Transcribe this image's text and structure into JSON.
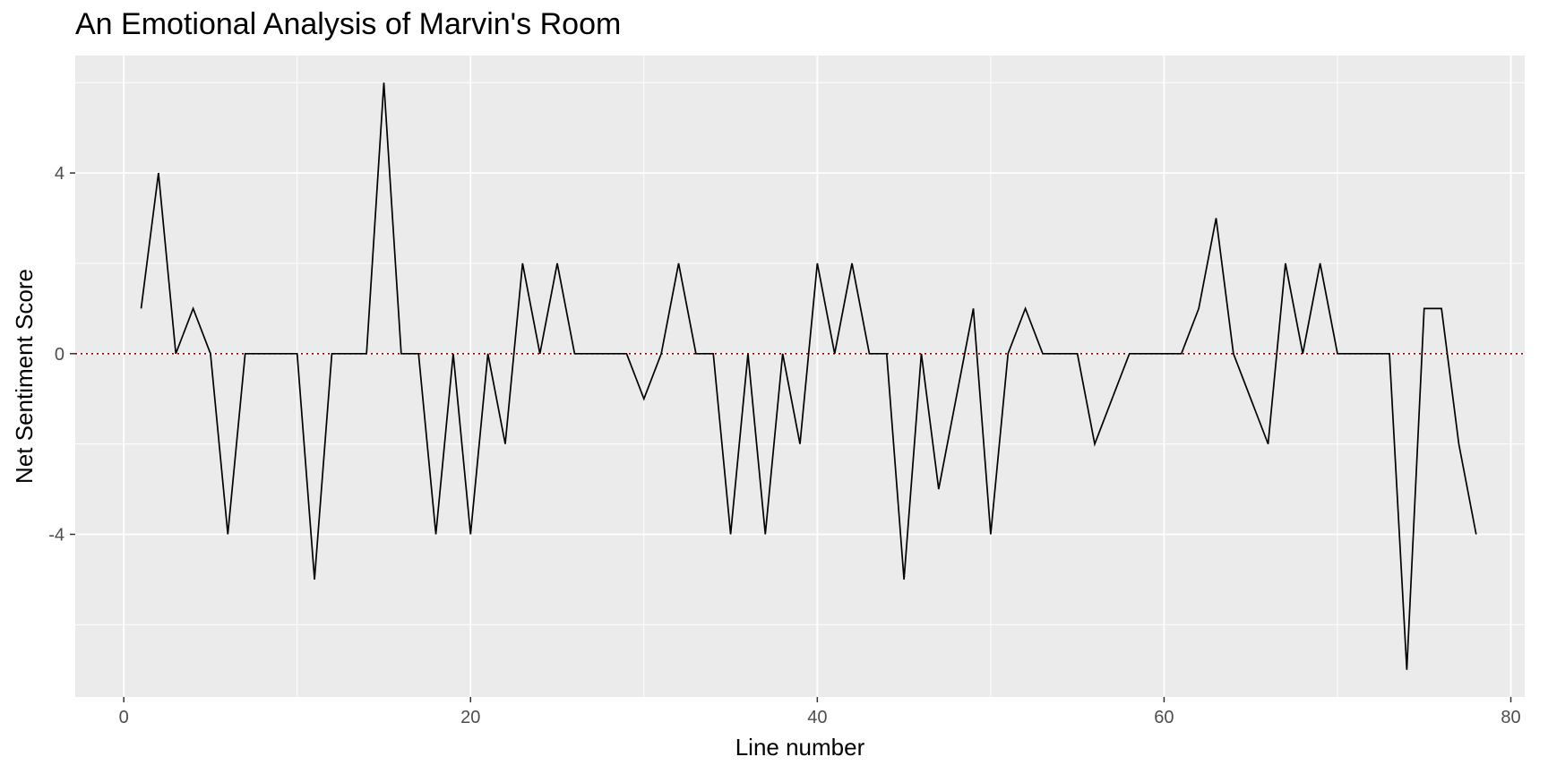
{
  "chart_data": {
    "type": "line",
    "title": "An Emotional Analysis of Marvin's Room",
    "xlabel": "Line number",
    "ylabel": "Net Sentiment Score",
    "xlim": [
      -2.8,
      80.8
    ],
    "ylim": [
      -7.6,
      6.6
    ],
    "x_ticks": [
      0,
      20,
      40,
      60,
      80
    ],
    "y_ticks": [
      -4,
      0,
      4
    ],
    "y_tick_labels": [
      "-4",
      "0",
      "4"
    ],
    "x_minor_ticks": [
      10,
      30,
      50,
      70
    ],
    "y_minor_ticks": [
      -6,
      -2,
      2,
      6
    ],
    "grid": true,
    "background": "#ebebeb",
    "gridline_color": "#ffffff",
    "line_color": "#000000",
    "reference_line": {
      "y": 0,
      "style": "dotted",
      "color": "#8b0000"
    },
    "x": [
      1,
      2,
      3,
      4,
      5,
      6,
      7,
      8,
      9,
      10,
      11,
      12,
      13,
      14,
      15,
      16,
      17,
      18,
      19,
      20,
      21,
      22,
      23,
      24,
      25,
      26,
      27,
      28,
      29,
      30,
      31,
      32,
      33,
      34,
      35,
      36,
      37,
      38,
      39,
      40,
      41,
      42,
      43,
      44,
      45,
      46,
      47,
      48,
      49,
      50,
      51,
      52,
      53,
      54,
      55,
      56,
      57,
      58,
      59,
      60,
      61,
      62,
      63,
      64,
      65,
      66,
      67,
      68,
      69,
      70,
      71,
      72,
      73,
      74,
      75,
      76,
      77,
      78
    ],
    "y": [
      1,
      4,
      0,
      1,
      0,
      -4,
      0,
      0,
      0,
      0,
      -5,
      0,
      0,
      0,
      6,
      0,
      0,
      -4,
      0,
      -4,
      0,
      -2,
      2,
      0,
      2,
      0,
      0,
      0,
      0,
      -1,
      0,
      2,
      0,
      0,
      -4,
      0,
      -4,
      0,
      -2,
      2,
      0,
      2,
      0,
      0,
      -5,
      0,
      -3,
      -1,
      1,
      -4,
      0,
      1,
      0,
      0,
      0,
      -2,
      -1,
      0,
      0,
      0,
      0,
      1,
      3,
      0,
      -1,
      -2,
      2,
      0,
      2,
      0,
      0,
      0,
      0,
      -7,
      1,
      1,
      -2,
      -4
    ]
  }
}
